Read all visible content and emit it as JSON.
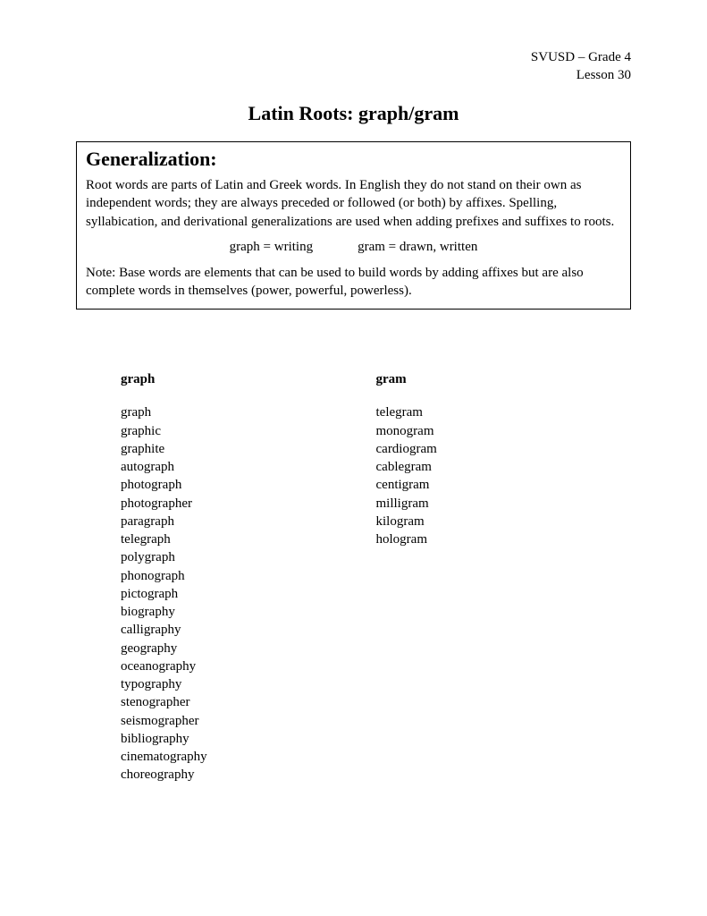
{
  "header": {
    "line1": "SVUSD – Grade 4",
    "line2": "Lesson 30"
  },
  "title": "Latin Roots: graph/gram",
  "box": {
    "heading": "Generalization:",
    "paragraph": "Root words are parts of Latin and Greek words.  In English they do not stand on their own as independent words; they are always preceded or followed (or both) by affixes.  Spelling, syllabication, and derivational generalizations are used when adding prefixes and suffixes to roots.",
    "root1": "graph = writing",
    "root2": "gram = drawn, written",
    "note": "Note: Base words are elements that can be used to build words by adding affixes but are also complete words in themselves (power, powerful, powerless)."
  },
  "columns": {
    "left": {
      "heading": "graph",
      "words": [
        "graph",
        "graphic",
        "graphite",
        "autograph",
        "photograph",
        "photographer",
        "paragraph",
        "telegraph",
        "polygraph",
        "phonograph",
        "pictograph",
        "biography",
        "calligraphy",
        "geography",
        "oceanography",
        "typography",
        "stenographer",
        "seismographer",
        "bibliography",
        "cinematography",
        "choreography"
      ]
    },
    "right": {
      "heading": "gram",
      "words": [
        "telegram",
        "monogram",
        "cardiogram",
        "cablegram",
        "centigram",
        "milligram",
        "kilogram",
        "hologram"
      ]
    }
  }
}
